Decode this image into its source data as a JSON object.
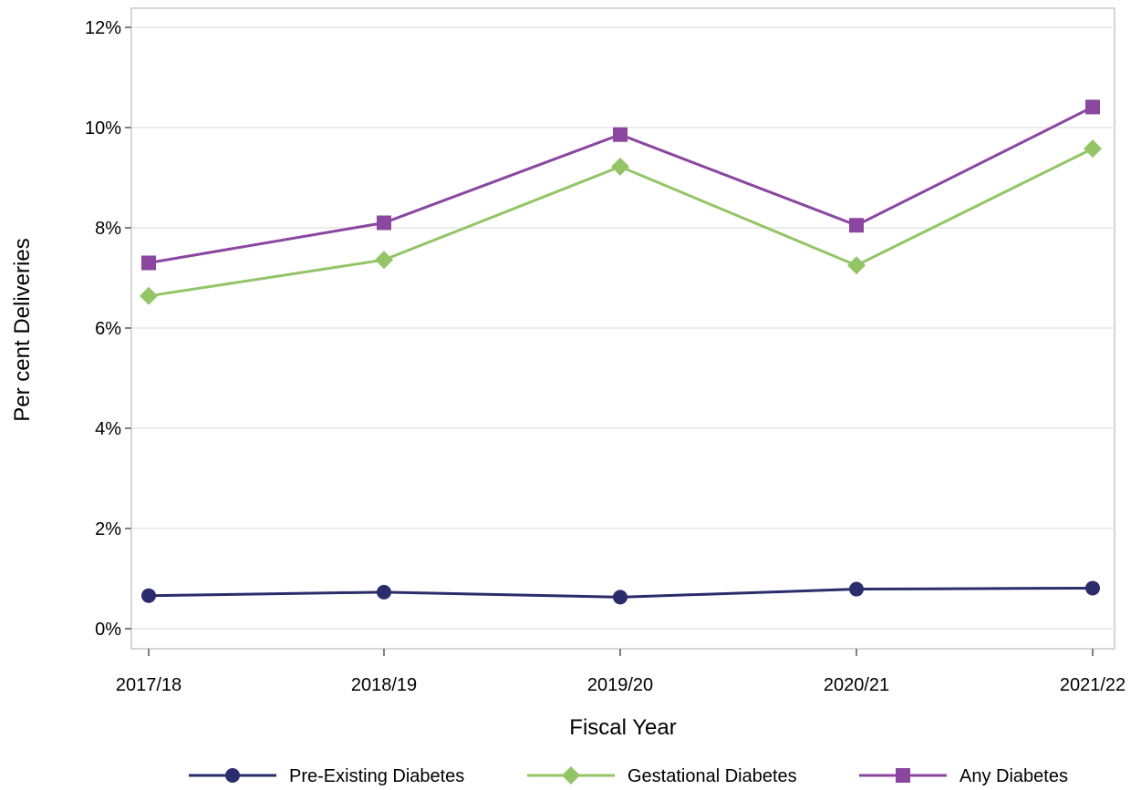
{
  "chart_data": {
    "type": "line",
    "title": "",
    "xlabel": "Fiscal Year",
    "ylabel": "Per cent Deliveries",
    "categories": [
      "2017/18",
      "2018/19",
      "2019/20",
      "2020/21",
      "2021/22"
    ],
    "ylim": [
      0,
      12
    ],
    "yticks": [
      0,
      2,
      4,
      6,
      8,
      10,
      12
    ],
    "ytick_labels": [
      "0%",
      "2%",
      "4%",
      "6%",
      "8%",
      "10%",
      "12%"
    ],
    "grid": true,
    "legend_position": "bottom",
    "series": [
      {
        "name": "Pre-Existing Diabetes",
        "values": [
          0.66,
          0.73,
          0.63,
          0.79,
          0.81
        ],
        "color": "#2b2c6b",
        "marker": "circle"
      },
      {
        "name": "Gestational Diabetes",
        "values": [
          6.64,
          7.36,
          9.22,
          7.25,
          9.58
        ],
        "color": "#93c567",
        "marker": "diamond"
      },
      {
        "name": "Any Diabetes",
        "values": [
          7.3,
          8.1,
          9.86,
          8.05,
          10.41
        ],
        "color": "#8b46a0",
        "marker": "square"
      }
    ]
  }
}
